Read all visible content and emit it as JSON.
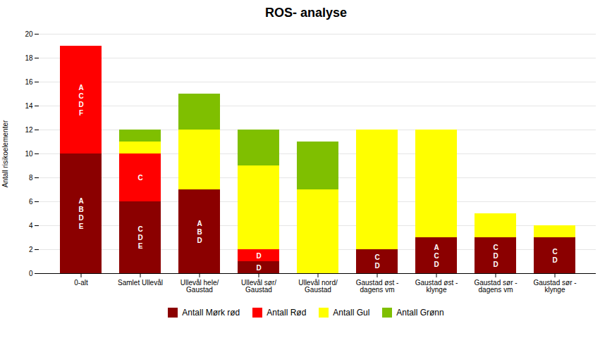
{
  "chart_data": {
    "type": "bar",
    "stacked": true,
    "title": "ROS- analyse",
    "ylabel": "Antall risikoelementer",
    "categories": [
      "0-alt",
      "Samlet Ullevål",
      "Ullevål hele/\nGaustad",
      "Ullevål sør/\nGaustad",
      "Ullevål nord/\nGaustad",
      "Gaustad øst -\ndagens vm",
      "Gaustad øst -\nklynge",
      "Gaustad sør -\ndagens vm",
      "Gaustad sør -\nklynge"
    ],
    "series": [
      {
        "name": "Antall Mørk rød",
        "color": "#8B0000",
        "values": [
          10,
          6,
          7,
          1,
          0,
          2,
          3,
          3,
          3
        ],
        "annotations": [
          "A\nB\nD\nE",
          "C\nD\nE",
          "A\nB\nD",
          "D",
          null,
          "C\nD",
          "A\nC\nD",
          "C\nD\nD",
          "C\nD"
        ]
      },
      {
        "name": "Antall Rød",
        "color": "#FF0000",
        "values": [
          9,
          4,
          0,
          1,
          0,
          0,
          0,
          0,
          0
        ],
        "annotations": [
          "A\nC\nD\nF",
          "C",
          null,
          "D",
          null,
          null,
          null,
          null,
          null
        ]
      },
      {
        "name": "Antall Gul",
        "color": "#FFFF00",
        "values": [
          0,
          1,
          5,
          7,
          7,
          10,
          9,
          2,
          1
        ]
      },
      {
        "name": "Antall Grønn",
        "color": "#7FBF00",
        "values": [
          0,
          1,
          3,
          3,
          4,
          0,
          0,
          0,
          0
        ]
      }
    ],
    "ylim": [
      0,
      20
    ],
    "yticks": [
      0,
      2,
      4,
      6,
      8,
      10,
      12,
      14,
      16,
      18,
      20
    ],
    "grid": true,
    "legend": "bottom"
  }
}
